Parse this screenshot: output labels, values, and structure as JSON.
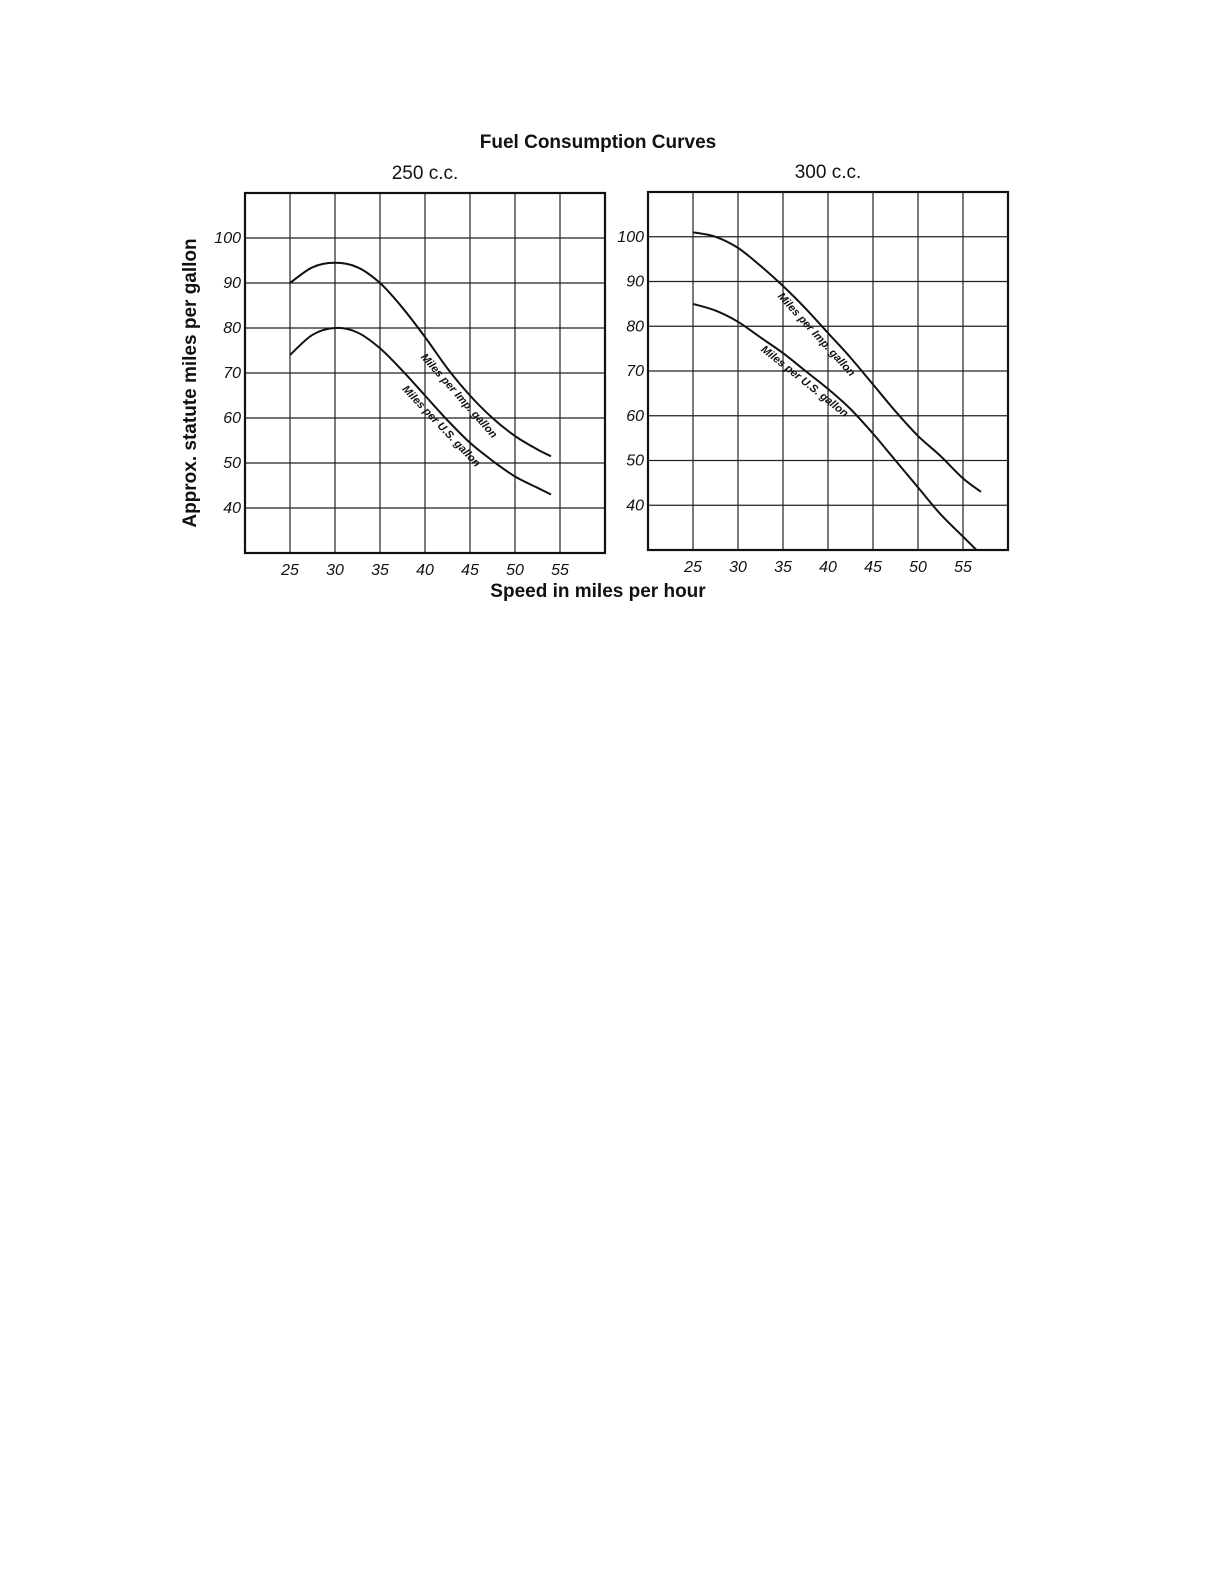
{
  "title": "Fuel Consumption Curves",
  "xlabel": "Speed in miles per hour",
  "ylabel": "Approx. statute miles per gallon",
  "chart_data": [
    {
      "type": "line",
      "title": "250 c.c.",
      "xlabel": "Speed in miles per hour",
      "ylabel": "Approx. statute miles per gallon",
      "xlim": [
        20,
        60
      ],
      "ylim": [
        30,
        110
      ],
      "x_ticks": [
        25,
        30,
        35,
        40,
        45,
        50,
        55
      ],
      "y_ticks": [
        40,
        50,
        60,
        70,
        80,
        90,
        100
      ],
      "grid": true,
      "series": [
        {
          "name": "Miles per Imp. gallon",
          "x": [
            25,
            27.5,
            30,
            32.5,
            35,
            37.5,
            40,
            42.5,
            45,
            47.5,
            50,
            52.5,
            54
          ],
          "y": [
            90,
            93.5,
            94.5,
            93.5,
            90,
            84.5,
            78,
            71,
            65,
            60,
            56,
            53,
            51.5
          ]
        },
        {
          "name": "Miles per U.S. gallon",
          "x": [
            25,
            27.5,
            30,
            32.5,
            35,
            37.5,
            40,
            42.5,
            45,
            47.5,
            50,
            52.5,
            54
          ],
          "y": [
            74,
            78.5,
            80,
            79,
            75.5,
            70.5,
            65,
            59.5,
            54.5,
            50.5,
            47,
            44.5,
            43
          ]
        }
      ]
    },
    {
      "type": "line",
      "title": "300 c.c.",
      "xlabel": "Speed in miles per hour",
      "ylabel": "Approx. statute miles per gallon",
      "xlim": [
        20,
        60
      ],
      "ylim": [
        30,
        110
      ],
      "x_ticks": [
        25,
        30,
        35,
        40,
        45,
        50,
        55
      ],
      "y_ticks": [
        40,
        50,
        60,
        70,
        80,
        90,
        100
      ],
      "grid": true,
      "series": [
        {
          "name": "Miles per Imp. gallon",
          "x": [
            25,
            27.5,
            30,
            32.5,
            35,
            37.5,
            40,
            42.5,
            45,
            47.5,
            50,
            52.5,
            55,
            57
          ],
          "y": [
            101,
            100,
            97.5,
            93.5,
            89,
            84,
            78.5,
            73,
            67,
            61,
            55.5,
            51,
            46,
            43
          ]
        },
        {
          "name": "Miles per U.S. gallon",
          "x": [
            25,
            27.5,
            30,
            32.5,
            35,
            37.5,
            40,
            42.5,
            45,
            47.5,
            50,
            52.5,
            55,
            56.5
          ],
          "y": [
            85,
            83.5,
            81,
            77.5,
            74,
            70,
            66,
            61.5,
            56,
            50,
            44,
            38,
            33,
            30
          ]
        }
      ]
    }
  ]
}
